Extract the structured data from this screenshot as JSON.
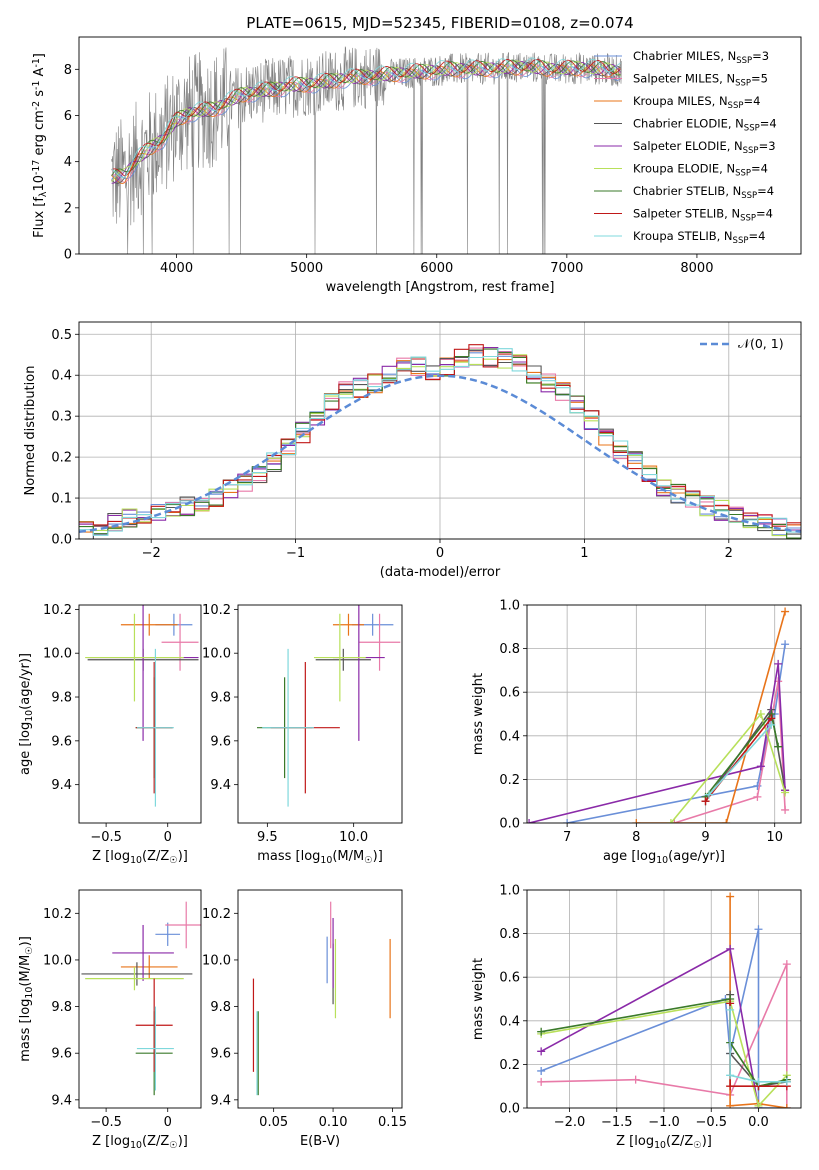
{
  "figure": {
    "title": "PLATE=0615, MJD=52345, FIBERID=0108, z=0.074"
  },
  "colors": {
    "Chabrier MILES": "#6a8fd8",
    "Salpeter MILES": "#e87aa8",
    "Kroupa MILES": "#e8741a",
    "Chabrier ELODIE": "#555555",
    "Salpeter ELODIE": "#8a2aa8",
    "Kroupa ELODIE": "#b8e05a",
    "Chabrier STELIB": "#3a7a2a",
    "Salpeter STELIB": "#c01818",
    "Kroupa STELIB": "#7fd8dc",
    "data": "#808080"
  },
  "chart_data": [
    {
      "id": "spectrum",
      "type": "line",
      "title": "PLATE=0615, MJD=52345, FIBERID=0108, z=0.074",
      "xlabel": "wavelength [Angstrom, rest frame]",
      "ylabel": "Flux [f$_\\lambda$10$^{-17}$ erg cm$^{-2}$ s$^{-1}$ A$^{-1}$]",
      "xlim": [
        3250,
        8800
      ],
      "ylim": [
        0,
        9.4
      ],
      "xticks": [
        4000,
        5000,
        6000,
        7000,
        8000
      ],
      "yticks": [
        0,
        2,
        4,
        6,
        8
      ],
      "legend_position": "right",
      "legend": [
        {
          "model": "Chabrier MILES",
          "label": "Chabrier MILES, N",
          "sub": "SSP",
          "tail": "=3"
        },
        {
          "model": "Salpeter MILES",
          "label": "Salpeter MILES, N",
          "sub": "SSP",
          "tail": "=5"
        },
        {
          "model": "Kroupa MILES",
          "label": "Kroupa MILES, N",
          "sub": "SSP",
          "tail": "=4"
        },
        {
          "model": "Chabrier ELODIE",
          "label": "Chabrier ELODIE, N",
          "sub": "SSP",
          "tail": "=4"
        },
        {
          "model": "Salpeter ELODIE",
          "label": "Salpeter ELODIE, N",
          "sub": "SSP",
          "tail": "=3"
        },
        {
          "model": "Kroupa ELODIE",
          "label": "Kroupa ELODIE, N",
          "sub": "SSP",
          "tail": "=4"
        },
        {
          "model": "Chabrier STELIB",
          "label": "Chabrier STELIB, N",
          "sub": "SSP",
          "tail": "=4"
        },
        {
          "model": "Salpeter STELIB",
          "label": "Salpeter STELIB, N",
          "sub": "SSP",
          "tail": "=4"
        },
        {
          "model": "Kroupa STELIB",
          "label": "Kroupa STELIB, N",
          "sub": "SSP",
          "tail": "=4"
        }
      ],
      "continuum": {
        "x": [
          3500,
          3600,
          3700,
          3800,
          3900,
          4000,
          4100,
          4200,
          4300,
          4400,
          4500,
          4700,
          4900,
          5100,
          5300,
          5500,
          5700,
          5900,
          6100,
          6300,
          6500,
          6700,
          6900,
          7100,
          7300,
          7420
        ],
        "y": [
          3.3,
          3.4,
          4.1,
          4.6,
          5.0,
          5.8,
          6.1,
          6.2,
          6.3,
          6.6,
          6.9,
          7.1,
          7.3,
          7.4,
          7.6,
          7.7,
          7.8,
          7.9,
          8.0,
          8.0,
          8.05,
          8.1,
          8.0,
          8.05,
          8.0,
          7.9
        ]
      },
      "note_data_range": [
        3500,
        7420
      ]
    },
    {
      "id": "residuals",
      "type": "line",
      "xlabel": "(data-model)/error",
      "ylabel": "Normed distribution",
      "xlim": [
        -2.5,
        2.5
      ],
      "ylim": [
        0,
        0.53
      ],
      "xticks": [
        -2,
        -1,
        0,
        1,
        2
      ],
      "yticks": [
        0.0,
        0.1,
        0.2,
        0.3,
        0.4,
        0.5
      ],
      "grid": true,
      "legend_position": "top-right",
      "normal_label": "𝒩(0, 1)",
      "hist_centers": [
        -2.45,
        -2.35,
        -2.25,
        -2.15,
        -2.05,
        -1.95,
        -1.85,
        -1.75,
        -1.65,
        -1.55,
        -1.45,
        -1.35,
        -1.25,
        -1.15,
        -1.05,
        -0.95,
        -0.85,
        -0.75,
        -0.65,
        -0.55,
        -0.45,
        -0.35,
        -0.25,
        -0.15,
        -0.05,
        0.05,
        0.15,
        0.25,
        0.35,
        0.45,
        0.55,
        0.65,
        0.75,
        0.85,
        0.95,
        1.05,
        1.15,
        1.25,
        1.35,
        1.45,
        1.55,
        1.65,
        1.75,
        1.85,
        1.95,
        2.05,
        2.15,
        2.25,
        2.35,
        2.45
      ],
      "hist_base": [
        0.02,
        0.03,
        0.04,
        0.05,
        0.06,
        0.065,
        0.07,
        0.08,
        0.085,
        0.1,
        0.12,
        0.14,
        0.16,
        0.19,
        0.22,
        0.26,
        0.3,
        0.33,
        0.36,
        0.37,
        0.38,
        0.4,
        0.43,
        0.42,
        0.41,
        0.42,
        0.44,
        0.45,
        0.445,
        0.44,
        0.43,
        0.4,
        0.38,
        0.36,
        0.33,
        0.29,
        0.25,
        0.22,
        0.19,
        0.16,
        0.13,
        0.11,
        0.095,
        0.08,
        0.07,
        0.06,
        0.045,
        0.035,
        0.03,
        0.025
      ]
    },
    {
      "id": "age-Z",
      "type": "scatter",
      "xlabel": "Z [log$_{10}$(Z/Z$_\\odot$)]",
      "ylabel": "age  [log$_{10}$(age/yr)]",
      "xlim": [
        -0.72,
        0.27
      ],
      "ylim": [
        9.225,
        10.22
      ],
      "xticks": [
        -0.5,
        0.0
      ],
      "yticks": [
        9.4,
        9.6,
        9.8,
        10.0,
        10.2
      ],
      "points": [
        {
          "model": "Chabrier MILES",
          "x": 0.05,
          "y": 10.13,
          "xe": 0.15,
          "ye": 0.05
        },
        {
          "model": "Salpeter MILES",
          "x": 0.1,
          "y": 10.05,
          "xe": 0.15,
          "ye": 0.13
        },
        {
          "model": "Kroupa MILES",
          "x": -0.15,
          "y": 10.13,
          "xe": 0.23,
          "ye": 0.05
        },
        {
          "model": "Chabrier ELODIE",
          "x": -0.2,
          "y": 9.97,
          "xe": 0.45,
          "ye": 0.05
        },
        {
          "model": "Salpeter ELODIE",
          "x": -0.2,
          "y": 9.98,
          "xe": 0.45,
          "ye": 0.38
        },
        {
          "model": "Kroupa ELODIE",
          "x": -0.27,
          "y": 9.98,
          "xe": 0.4,
          "ye": 0.2
        },
        {
          "model": "Chabrier STELIB",
          "x": -0.11,
          "y": 9.66,
          "xe": 0.15,
          "ye": 0.23
        },
        {
          "model": "Salpeter STELIB",
          "x": -0.11,
          "y": 9.66,
          "xe": 0.15,
          "ye": 0.3
        },
        {
          "model": "Kroupa STELIB",
          "x": -0.1,
          "y": 9.66,
          "xe": 0.15,
          "ye": 0.36
        }
      ]
    },
    {
      "id": "age-mass",
      "type": "scatter",
      "xlabel": "mass [log$_{10}$(M/M$_\\odot$)]",
      "ylabel": "",
      "xlim": [
        9.33,
        10.28
      ],
      "ylim": [
        9.225,
        10.22
      ],
      "xticks": [
        9.5,
        10.0
      ],
      "yticks": [
        9.4,
        9.6,
        9.8,
        10.0,
        10.2
      ],
      "points": [
        {
          "model": "Chabrier MILES",
          "x": 10.11,
          "y": 10.13,
          "xe": 0.12,
          "ye": 0.05
        },
        {
          "model": "Salpeter MILES",
          "x": 10.15,
          "y": 10.05,
          "xe": 0.12,
          "ye": 0.13
        },
        {
          "model": "Kroupa MILES",
          "x": 9.97,
          "y": 10.13,
          "xe": 0.09,
          "ye": 0.05
        },
        {
          "model": "Chabrier ELODIE",
          "x": 9.94,
          "y": 9.97,
          "xe": 0.16,
          "ye": 0.05
        },
        {
          "model": "Salpeter ELODIE",
          "x": 10.03,
          "y": 9.98,
          "xe": 0.15,
          "ye": 0.38
        },
        {
          "model": "Kroupa ELODIE",
          "x": 9.92,
          "y": 9.98,
          "xe": 0.15,
          "ye": 0.2
        },
        {
          "model": "Chabrier STELIB",
          "x": 9.6,
          "y": 9.66,
          "xe": 0.16,
          "ye": 0.23
        },
        {
          "model": "Salpeter STELIB",
          "x": 9.72,
          "y": 9.66,
          "xe": 0.2,
          "ye": 0.3
        },
        {
          "model": "Kroupa STELIB",
          "x": 9.62,
          "y": 9.66,
          "xe": 0.15,
          "ye": 0.36
        }
      ]
    },
    {
      "id": "mass-weight-age",
      "type": "line",
      "xlabel": "age  [log$_{10}$(age/yr)]",
      "ylabel": "mass weight",
      "xlim": [
        6.42,
        10.38
      ],
      "ylim": [
        0,
        1.0
      ],
      "xticks": [
        7,
        8,
        9,
        10
      ],
      "yticks": [
        0.0,
        0.2,
        0.4,
        0.6,
        0.8,
        1.0
      ],
      "grid": true,
      "series": [
        {
          "model": "Chabrier MILES",
          "x": [
            7.0,
            9.75,
            9.95,
            10.0,
            10.15
          ],
          "y": [
            0.0,
            0.17,
            0.48,
            0.5,
            0.82
          ]
        },
        {
          "model": "Salpeter MILES",
          "x": [
            8.55,
            9.75,
            10.05,
            10.15
          ],
          "y": [
            0.0,
            0.12,
            0.65,
            0.06
          ]
        },
        {
          "model": "Kroupa MILES",
          "x": [
            8.0,
            9.3,
            10.15
          ],
          "y": [
            0.0,
            0.0,
            0.97
          ]
        },
        {
          "model": "Chabrier ELODIE",
          "x": [
            9.0,
            9.95,
            10.15
          ],
          "y": [
            0.1,
            0.52,
            0.15
          ]
        },
        {
          "model": "Salpeter ELODIE",
          "x": [
            6.45,
            9.8,
            10.05,
            10.15
          ],
          "y": [
            0.0,
            0.26,
            0.73,
            0.15
          ]
        },
        {
          "model": "Kroupa ELODIE",
          "x": [
            8.5,
            9.8,
            10.15
          ],
          "y": [
            0.0,
            0.5,
            0.14
          ]
        },
        {
          "model": "Chabrier STELIB",
          "x": [
            9.0,
            9.95,
            10.05
          ],
          "y": [
            0.12,
            0.5,
            0.35
          ]
        },
        {
          "model": "Salpeter STELIB",
          "x": [
            9.0,
            9.95
          ],
          "y": [
            0.1,
            0.48
          ]
        },
        {
          "model": "Kroupa STELIB",
          "x": [
            9.05,
            9.95
          ],
          "y": [
            0.13,
            0.45
          ]
        }
      ]
    },
    {
      "id": "mass-Z",
      "type": "scatter",
      "xlabel": "Z [log$_{10}$(Z/Z$_\\odot$)]",
      "ylabel": "mass [log$_{10}$(M/M$_\\odot$)]",
      "xlim": [
        -0.72,
        0.27
      ],
      "ylim": [
        9.365,
        10.3
      ],
      "xticks": [
        -0.5,
        0.0
      ],
      "yticks": [
        9.4,
        9.6,
        9.8,
        10.0,
        10.2
      ],
      "points": [
        {
          "model": "Chabrier MILES",
          "x": 0.0,
          "y": 10.11,
          "xe": 0.1,
          "ye": 0.05
        },
        {
          "model": "Salpeter MILES",
          "x": 0.15,
          "y": 10.15,
          "xe": 0.17,
          "ye": 0.1
        },
        {
          "model": "Kroupa MILES",
          "x": -0.15,
          "y": 9.97,
          "xe": 0.23,
          "ye": 0.05
        },
        {
          "model": "Chabrier ELODIE",
          "x": -0.25,
          "y": 9.94,
          "xe": 0.45,
          "ye": 0.05
        },
        {
          "model": "Salpeter ELODIE",
          "x": -0.2,
          "y": 10.03,
          "xe": 0.25,
          "ye": 0.12
        },
        {
          "model": "Kroupa ELODIE",
          "x": -0.27,
          "y": 9.92,
          "xe": 0.4,
          "ye": 0.05
        },
        {
          "model": "Chabrier STELIB",
          "x": -0.11,
          "y": 9.6,
          "xe": 0.15,
          "ye": 0.18
        },
        {
          "model": "Salpeter STELIB",
          "x": -0.11,
          "y": 9.72,
          "xe": 0.15,
          "ye": 0.2
        },
        {
          "model": "Kroupa STELIB",
          "x": -0.1,
          "y": 9.62,
          "xe": 0.15,
          "ye": 0.18
        }
      ]
    },
    {
      "id": "mass-ebv",
      "type": "scatter",
      "xlabel": "E(B-V)",
      "ylabel": "",
      "xlim": [
        0.02,
        0.158
      ],
      "ylim": [
        9.365,
        10.3
      ],
      "xticks": [
        0.05,
        0.1,
        0.15
      ],
      "yticks": [
        9.4,
        9.6,
        9.8,
        10.0,
        10.2
      ],
      "points": [
        {
          "model": "Chabrier MILES",
          "x": 0.095,
          "y": 10.0,
          "ye": 0.1
        },
        {
          "model": "Salpeter MILES",
          "x": 0.098,
          "y": 10.15,
          "ye": 0.1
        },
        {
          "model": "Kroupa MILES",
          "x": 0.148,
          "y": 9.92,
          "ye": 0.17
        },
        {
          "model": "Chabrier ELODIE",
          "x": 0.1,
          "y": 9.94,
          "ye": 0.13
        },
        {
          "model": "Salpeter ELODIE",
          "x": 0.1,
          "y": 10.03,
          "ye": 0.15
        },
        {
          "model": "Kroupa ELODIE",
          "x": 0.102,
          "y": 9.92,
          "ye": 0.17
        },
        {
          "model": "Chabrier STELIB",
          "x": 0.037,
          "y": 9.6,
          "ye": 0.18
        },
        {
          "model": "Salpeter STELIB",
          "x": 0.033,
          "y": 9.72,
          "ye": 0.2
        },
        {
          "model": "Kroupa STELIB",
          "x": 0.036,
          "y": 9.6,
          "ye": 0.18
        }
      ]
    },
    {
      "id": "mass-weight-Z",
      "type": "line",
      "xlabel": "Z [log$_{10}$(Z/Z$_\\odot$)]",
      "ylabel": "mass weight",
      "xlim": [
        -2.45,
        0.45
      ],
      "ylim": [
        0,
        1.0
      ],
      "xticks": [
        -2.0,
        -1.5,
        -1.0,
        -0.5,
        0.0
      ],
      "yticks": [
        0.0,
        0.2,
        0.4,
        0.6,
        0.8,
        1.0
      ],
      "grid": true,
      "series": [
        {
          "model": "Chabrier MILES",
          "x": [
            -2.3,
            -0.35,
            -0.3,
            0.0,
            0.0,
            0.3
          ],
          "y": [
            0.17,
            0.5,
            0.25,
            0.82,
            0.0,
            0.0
          ]
        },
        {
          "model": "Salpeter MILES",
          "x": [
            -2.3,
            -1.3,
            -0.3,
            0.3,
            0.3
          ],
          "y": [
            0.12,
            0.13,
            0.06,
            0.66,
            0.0
          ]
        },
        {
          "model": "Kroupa MILES",
          "x": [
            -0.3,
            -0.3,
            0.0,
            0.3
          ],
          "y": [
            0.97,
            0.01,
            0.02,
            0.0
          ]
        },
        {
          "model": "Chabrier ELODIE",
          "x": [
            -0.3,
            -0.3,
            0.0,
            0.3
          ],
          "y": [
            0.52,
            0.25,
            0.1,
            0.12
          ]
        },
        {
          "model": "Salpeter ELODIE",
          "x": [
            -2.3,
            -0.3,
            0.0
          ],
          "y": [
            0.26,
            0.73,
            0.0
          ]
        },
        {
          "model": "Kroupa ELODIE",
          "x": [
            -2.3,
            -0.3,
            0.0,
            0.3
          ],
          "y": [
            0.34,
            0.49,
            0.01,
            0.15
          ]
        },
        {
          "model": "Chabrier STELIB",
          "x": [
            -2.3,
            -0.3,
            -0.3,
            0.0,
            0.3
          ],
          "y": [
            0.35,
            0.5,
            0.3,
            0.1,
            0.13
          ]
        },
        {
          "model": "Salpeter STELIB",
          "x": [
            -0.3,
            -0.3,
            0.0,
            0.3
          ],
          "y": [
            0.48,
            0.1,
            0.1,
            0.1
          ]
        },
        {
          "model": "Kroupa STELIB",
          "x": [
            -0.3,
            -0.3,
            0.0,
            0.3
          ],
          "y": [
            0.45,
            0.15,
            0.12,
            0.12
          ]
        }
      ]
    }
  ]
}
